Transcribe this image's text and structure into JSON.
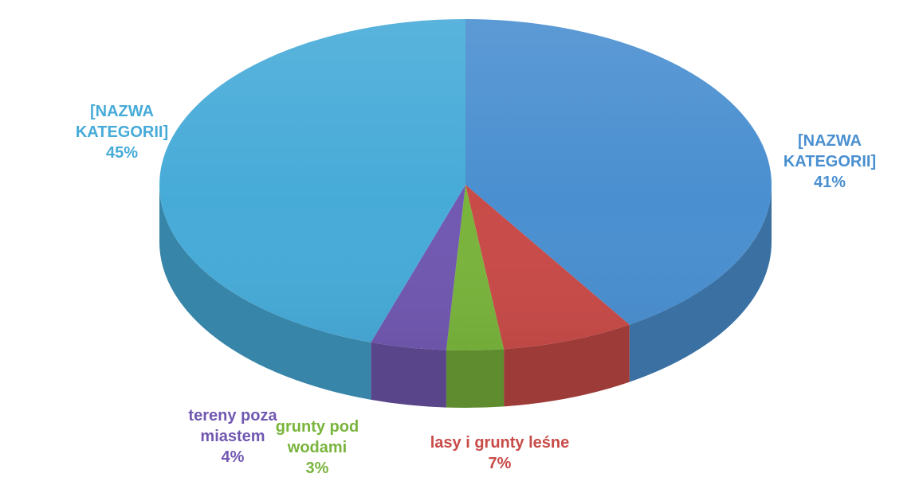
{
  "chart_data": {
    "type": "pie",
    "style": "3d",
    "title": "",
    "show_percent_labels": true,
    "slices": [
      {
        "label_lines": [
          "[NAZWA",
          "KATEGORII]"
        ],
        "percent_text": "41%",
        "value": 41,
        "color": "#4a8fd0",
        "label_color": "#4a8fd0"
      },
      {
        "label_lines": [
          "lasy i grunty leśne"
        ],
        "percent_text": "7%",
        "value": 7,
        "color": "#c84b48",
        "label_color": "#c84b48"
      },
      {
        "label_lines": [
          "grunty pod",
          "wodami"
        ],
        "percent_text": "3%",
        "value": 3,
        "color": "#79b43c",
        "label_color": "#79b43c"
      },
      {
        "label_lines": [
          "tereny poza",
          "miastem"
        ],
        "percent_text": "4%",
        "value": 4,
        "color": "#7158b1",
        "label_color": "#7158b1"
      },
      {
        "label_lines": [
          "[NAZWA",
          "KATEGORII]"
        ],
        "percent_text": "45%",
        "value": 45,
        "color": "#47abd8",
        "label_color": "#47abd8"
      }
    ]
  }
}
